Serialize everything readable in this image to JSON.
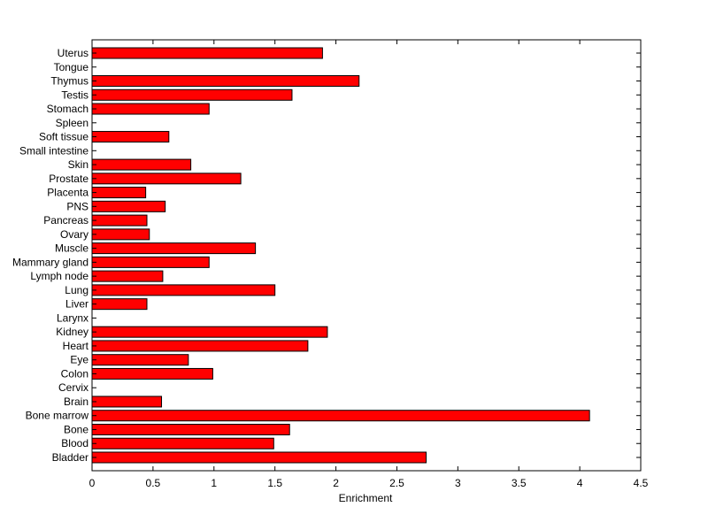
{
  "chart_data": {
    "type": "bar",
    "orientation": "horizontal",
    "title": "",
    "xlabel": "Enrichment",
    "ylabel": "",
    "xlim": [
      0,
      4.5
    ],
    "xticks": [
      "0",
      "0.5",
      "1",
      "1.5",
      "2",
      "2.5",
      "3",
      "3.5",
      "4",
      "4.5"
    ],
    "grid": false,
    "bar_color": "#ff0000",
    "categories": [
      "Bladder",
      "Blood",
      "Bone",
      "Bone marrow",
      "Brain",
      "Cervix",
      "Colon",
      "Eye",
      "Heart",
      "Kidney",
      "Larynx",
      "Liver",
      "Lung",
      "Lymph node",
      "Mammary gland",
      "Muscle",
      "Ovary",
      "Pancreas",
      "PNS",
      "Placenta",
      "Prostate",
      "Skin",
      "Small intestine",
      "Soft tissue",
      "Spleen",
      "Stomach",
      "Testis",
      "Thymus",
      "Tongue",
      "Uterus"
    ],
    "values": [
      2.74,
      1.49,
      1.62,
      4.08,
      0.57,
      0,
      0.99,
      0.79,
      1.77,
      1.93,
      0,
      0.45,
      1.5,
      0.58,
      0.96,
      1.34,
      0.47,
      0.45,
      0.6,
      0.44,
      1.22,
      0.81,
      0,
      0.63,
      0,
      0.96,
      1.64,
      2.19,
      0,
      1.89
    ]
  }
}
